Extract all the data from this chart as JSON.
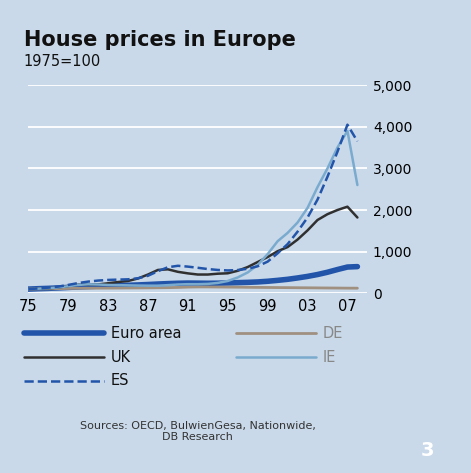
{
  "title": "House prices in Europe",
  "subtitle": "1975=100",
  "background_color": "#c9d9e9",
  "ylim": [
    0,
    5000
  ],
  "yticks": [
    0,
    1000,
    2000,
    3000,
    4000,
    5000
  ],
  "ytick_labels": [
    "0",
    "1,000",
    "2,000",
    "3,000",
    "4,000",
    "5,000"
  ],
  "xtick_labels": [
    "75",
    "79",
    "83",
    "87",
    "91",
    "95",
    "99",
    "03",
    "07"
  ],
  "xtick_positions": [
    1975,
    1979,
    1983,
    1987,
    1991,
    1995,
    1999,
    2003,
    2007
  ],
  "xlim": [
    1975,
    2009
  ],
  "series": {
    "euro_area": {
      "label": "Euro area",
      "color": "#2255aa",
      "linewidth": 4.0,
      "linestyle": "solid",
      "x": [
        1975,
        1976,
        1977,
        1978,
        1979,
        1980,
        1981,
        1982,
        1983,
        1984,
        1985,
        1986,
        1987,
        1988,
        1989,
        1990,
        1991,
        1992,
        1993,
        1994,
        1995,
        1996,
        1997,
        1998,
        1999,
        2000,
        2001,
        2002,
        2003,
        2004,
        2005,
        2006,
        2007,
        2008
      ],
      "y": [
        100,
        110,
        118,
        128,
        140,
        152,
        162,
        170,
        178,
        185,
        192,
        200,
        210,
        222,
        232,
        240,
        245,
        243,
        240,
        242,
        248,
        255,
        262,
        272,
        288,
        310,
        335,
        368,
        405,
        450,
        505,
        570,
        630,
        640
      ]
    },
    "DE": {
      "label": "DE",
      "color": "#a09080",
      "linewidth": 2.0,
      "linestyle": "solid",
      "x": [
        1975,
        1976,
        1977,
        1978,
        1979,
        1980,
        1981,
        1982,
        1983,
        1984,
        1985,
        1986,
        1987,
        1988,
        1989,
        1990,
        1991,
        1992,
        1993,
        1994,
        1995,
        1996,
        1997,
        1998,
        1999,
        2000,
        2001,
        2002,
        2003,
        2004,
        2005,
        2006,
        2007,
        2008
      ],
      "y": [
        100,
        104,
        107,
        110,
        115,
        120,
        122,
        123,
        124,
        125,
        127,
        128,
        130,
        132,
        135,
        140,
        148,
        152,
        152,
        150,
        148,
        146,
        143,
        141,
        139,
        137,
        135,
        133,
        131,
        129,
        127,
        125,
        123,
        122
      ]
    },
    "UK": {
      "label": "UK",
      "color": "#303030",
      "linewidth": 1.8,
      "linestyle": "solid",
      "x": [
        1975,
        1976,
        1977,
        1978,
        1979,
        1980,
        1981,
        1982,
        1983,
        1984,
        1985,
        1986,
        1987,
        1988,
        1989,
        1990,
        1991,
        1992,
        1993,
        1994,
        1995,
        1996,
        1997,
        1998,
        1999,
        2000,
        2001,
        2002,
        2003,
        2004,
        2005,
        2006,
        2007,
        2008
      ],
      "y": [
        100,
        110,
        118,
        138,
        175,
        205,
        210,
        212,
        240,
        270,
        295,
        355,
        450,
        560,
        575,
        515,
        478,
        450,
        450,
        470,
        480,
        540,
        630,
        750,
        870,
        1010,
        1110,
        1290,
        1510,
        1760,
        1900,
        2000,
        2080,
        1820
      ]
    },
    "IE": {
      "label": "IE",
      "color": "#7aabcf",
      "linewidth": 1.8,
      "linestyle": "solid",
      "x": [
        1975,
        1976,
        1977,
        1978,
        1979,
        1980,
        1981,
        1982,
        1983,
        1984,
        1985,
        1986,
        1987,
        1988,
        1989,
        1990,
        1991,
        1992,
        1993,
        1994,
        1995,
        1996,
        1997,
        1998,
        1999,
        2000,
        2001,
        2002,
        2003,
        2004,
        2005,
        2006,
        2007,
        2008
      ],
      "y": [
        100,
        110,
        122,
        140,
        170,
        200,
        215,
        210,
        200,
        195,
        190,
        185,
        182,
        182,
        195,
        210,
        218,
        218,
        225,
        248,
        295,
        380,
        500,
        680,
        940,
        1250,
        1450,
        1700,
        2050,
        2550,
        3000,
        3500,
        3900,
        2600
      ]
    },
    "ES": {
      "label": "ES",
      "color": "#2255aa",
      "linewidth": 1.8,
      "linestyle": "dashed",
      "x": [
        1975,
        1976,
        1977,
        1978,
        1979,
        1980,
        1981,
        1982,
        1983,
        1984,
        1985,
        1986,
        1987,
        1988,
        1989,
        1990,
        1991,
        1992,
        1993,
        1994,
        1995,
        1996,
        1997,
        1998,
        1999,
        2000,
        2001,
        2002,
        2003,
        2004,
        2005,
        2006,
        2007,
        2008
      ],
      "y": [
        100,
        115,
        135,
        160,
        200,
        245,
        280,
        305,
        320,
        328,
        335,
        360,
        420,
        530,
        625,
        660,
        640,
        612,
        582,
        560,
        548,
        558,
        588,
        648,
        760,
        960,
        1180,
        1480,
        1820,
        2250,
        2800,
        3400,
        4050,
        3650
      ]
    }
  },
  "source_text": "Sources: OECD, BulwienGesa, Nationwide,\nDB Research",
  "page_number": "3",
  "page_num_bg": "#1a3a7a",
  "page_num_color": "#ffffff"
}
